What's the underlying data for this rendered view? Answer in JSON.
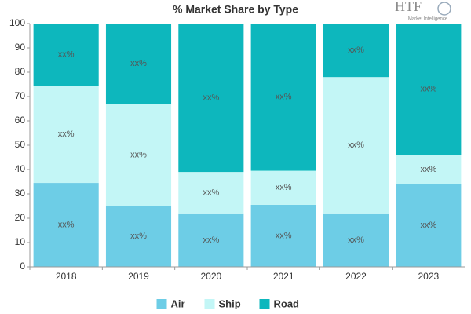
{
  "chart_data": {
    "type": "stacked-bar",
    "title": "% Market Share by Type",
    "logo": {
      "mark": "HTF",
      "text": "Market Intelligence"
    },
    "categories": [
      "2018",
      "2019",
      "2020",
      "2021",
      "2022",
      "2023"
    ],
    "series": [
      {
        "name": "Air",
        "color": "#6dcde6",
        "values": [
          34.5,
          25,
          22,
          25.5,
          22,
          34
        ],
        "value_labels": [
          "xx%",
          "xx%",
          "xx%",
          "xx%",
          "xx%",
          "xx%"
        ]
      },
      {
        "name": "Ship",
        "color": "#c3f6f6",
        "values": [
          40,
          42,
          17,
          14,
          56,
          12
        ],
        "value_labels": [
          "xx%",
          "xx%",
          "xx%",
          "xx%",
          "xx%",
          "xx%"
        ]
      },
      {
        "name": "Road",
        "color": "#0db7bd",
        "values": [
          25.5,
          33,
          61,
          60.5,
          22,
          54
        ],
        "value_labels": [
          "xx%",
          "xx%",
          "xx%",
          "xx%",
          "xx%",
          "xx%"
        ]
      }
    ],
    "ylim": [
      0,
      100
    ],
    "yticks": [
      0,
      10,
      20,
      30,
      40,
      50,
      60,
      70,
      80,
      90,
      100
    ],
    "legend": "bottom"
  }
}
